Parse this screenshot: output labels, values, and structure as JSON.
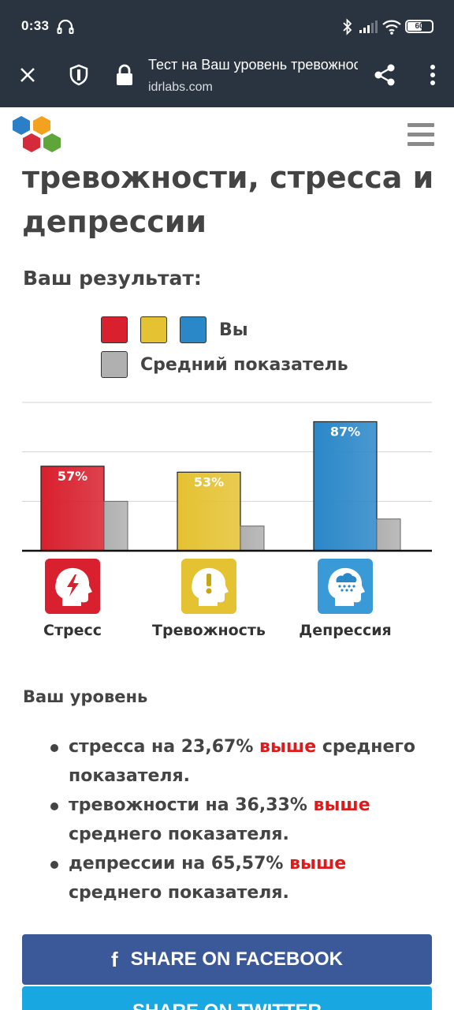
{
  "status_bar": {
    "time": "0:33",
    "battery_level": 60,
    "battery_text": "60"
  },
  "browser": {
    "page_title": "Тест на Ваш уровень тревожности",
    "domain": "idrlabs.com"
  },
  "page": {
    "title": "тревожности, стресса и депрессии",
    "result_label": "Ваш результат:",
    "legend": {
      "you_label": "Вы",
      "average_label": "Средний показатель"
    },
    "level_heading": "Ваш уровень",
    "levels": [
      {
        "before": "стресса на 23,67% ",
        "highlight": "выше",
        "after": " среднего показателя."
      },
      {
        "before": "тревожности на 36,33% ",
        "highlight": "выше",
        "after": " среднего показателя."
      },
      {
        "before": "депрессии на 65,57% ",
        "highlight": "выше",
        "after": " среднего показателя."
      }
    ],
    "share_facebook": "SHARE ON FACEBOOK",
    "share_twitter": "SHARE ON TWITTER"
  },
  "colors": {
    "stress": "#d8202e",
    "anxiety": "#e5c232",
    "depression": "#2a87c8",
    "average": "#b0b0b0",
    "highlight": "#e01a1a",
    "facebook": "#3b5999",
    "twitter": "#18a7e0"
  },
  "chart_data": {
    "type": "bar",
    "categories": [
      "Стресс",
      "Тревожность",
      "Депрессия"
    ],
    "series": [
      {
        "name": "Вы",
        "values": [
          57,
          53,
          87
        ]
      },
      {
        "name": "Средний показатель",
        "values": [
          33.33,
          16.67,
          21.43
        ]
      }
    ],
    "data_labels": [
      "57%",
      "53%",
      "87%"
    ],
    "icons": [
      "lightning-head-icon",
      "exclamation-head-icon",
      "cloud-head-icon"
    ],
    "ylim": [
      0,
      100
    ],
    "grid": true
  }
}
